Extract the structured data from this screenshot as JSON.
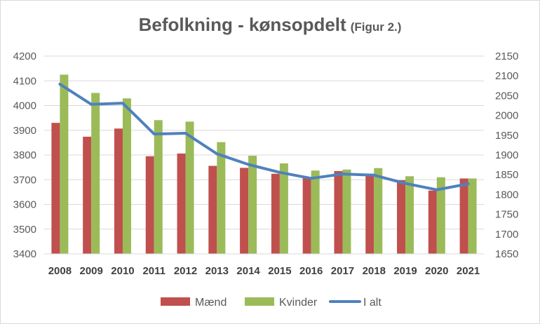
{
  "chart_data": {
    "type": "bar",
    "title": "Befolkning - kønsopdelt",
    "subtitle": "(Figur 2.)",
    "categories": [
      "2008",
      "2009",
      "2010",
      "2011",
      "2012",
      "2013",
      "2014",
      "2015",
      "2016",
      "2017",
      "2018",
      "2019",
      "2020",
      "2021"
    ],
    "series": [
      {
        "name": "Mænd",
        "type": "bar",
        "axis": "left",
        "color": "#c0504d",
        "values": [
          3930,
          3874,
          3907,
          3795,
          3806,
          3756,
          3748,
          3724,
          3711,
          3735,
          3724,
          3698,
          3656,
          3705
        ]
      },
      {
        "name": "Kvinder",
        "type": "bar",
        "axis": "left",
        "color": "#9bbb59",
        "values": [
          4125,
          4051,
          4029,
          3941,
          3935,
          3852,
          3797,
          3766,
          3737,
          3741,
          3747,
          3714,
          3710,
          3705
        ]
      },
      {
        "name": "I alt",
        "type": "line",
        "axis": "right",
        "color": "#4f81bd",
        "values": [
          2079,
          2028,
          2031,
          1953,
          1955,
          1903,
          1876,
          1856,
          1841,
          1852,
          1849,
          1828,
          1812,
          1827
        ]
      }
    ],
    "y_left": {
      "min": 3400,
      "max": 4200,
      "step": 100,
      "ticks": [
        "3400",
        "3500",
        "3600",
        "3700",
        "3800",
        "3900",
        "4000",
        "4100",
        "4200"
      ]
    },
    "y_right": {
      "min": 1650,
      "max": 2150,
      "step": 50,
      "ticks": [
        "1650",
        "1700",
        "1750",
        "1800",
        "1850",
        "1900",
        "1950",
        "2000",
        "2050",
        "2100",
        "2150"
      ]
    },
    "grid": true,
    "legend": {
      "position": "bottom",
      "items": [
        "Mænd",
        "Kvinder",
        "I alt"
      ]
    }
  }
}
